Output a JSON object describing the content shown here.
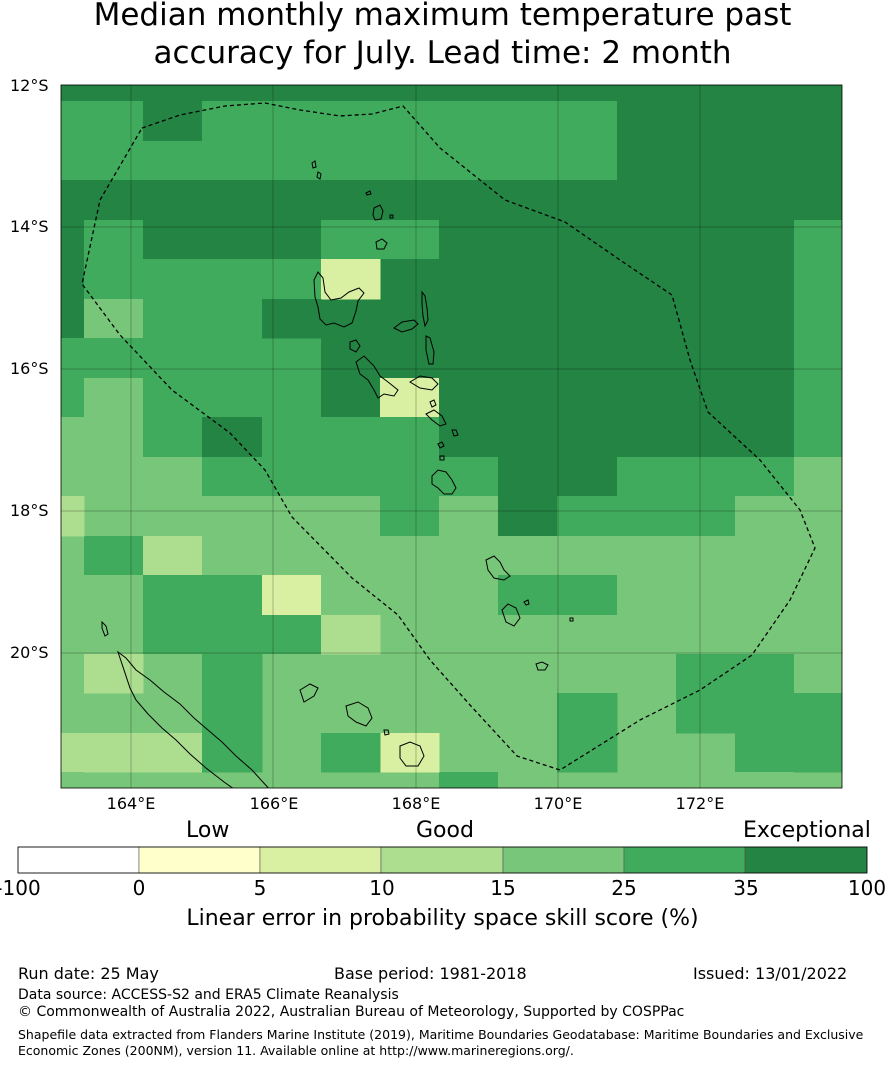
{
  "title": {
    "line1": "Median monthly maximum temperature past",
    "line2": "accuracy for July. Lead time: 2 month"
  },
  "map": {
    "lat_labels": [
      "12°S",
      "14°S",
      "16°S",
      "18°S",
      "20°S"
    ],
    "lon_labels": [
      "164°E",
      "166°E",
      "168°E",
      "170°E",
      "172°E"
    ],
    "boundary": "Vanuatu EEZ (dashed line)"
  },
  "legend": {
    "categories": [
      "Low",
      "Good",
      "Exceptional"
    ],
    "ticks": [
      "-100",
      "0",
      "5",
      "10",
      "15",
      "25",
      "35",
      "100"
    ],
    "colors": [
      "#ffffff",
      "#ffffcc",
      "#d9f0a3",
      "#addd8e",
      "#78c679",
      "#41ab5d",
      "#238443"
    ],
    "title": "Linear error in probability space skill score (%)"
  },
  "footer": {
    "run_date": "Run date: 25 May",
    "base_period": "Base period: 1981-2018",
    "issued": "Issued: 13/01/2022",
    "data_source": "Data source: ACCESS-S2 and ERA5 Climate Reanalysis",
    "copyright": "© Commonwealth of Australia 2022, Australian Bureau of Meteorology, Supported by COSPPac",
    "shapefile_line1": "Shapefile data extracted from Flanders Marine Institute (2019), Maritime Boundaries Geodatabase: Maritime Boundaries and Exclusive",
    "shapefile_line2": "Economic Zones (200NM), version 11. Available online at http://www.marineregions.org/."
  }
}
